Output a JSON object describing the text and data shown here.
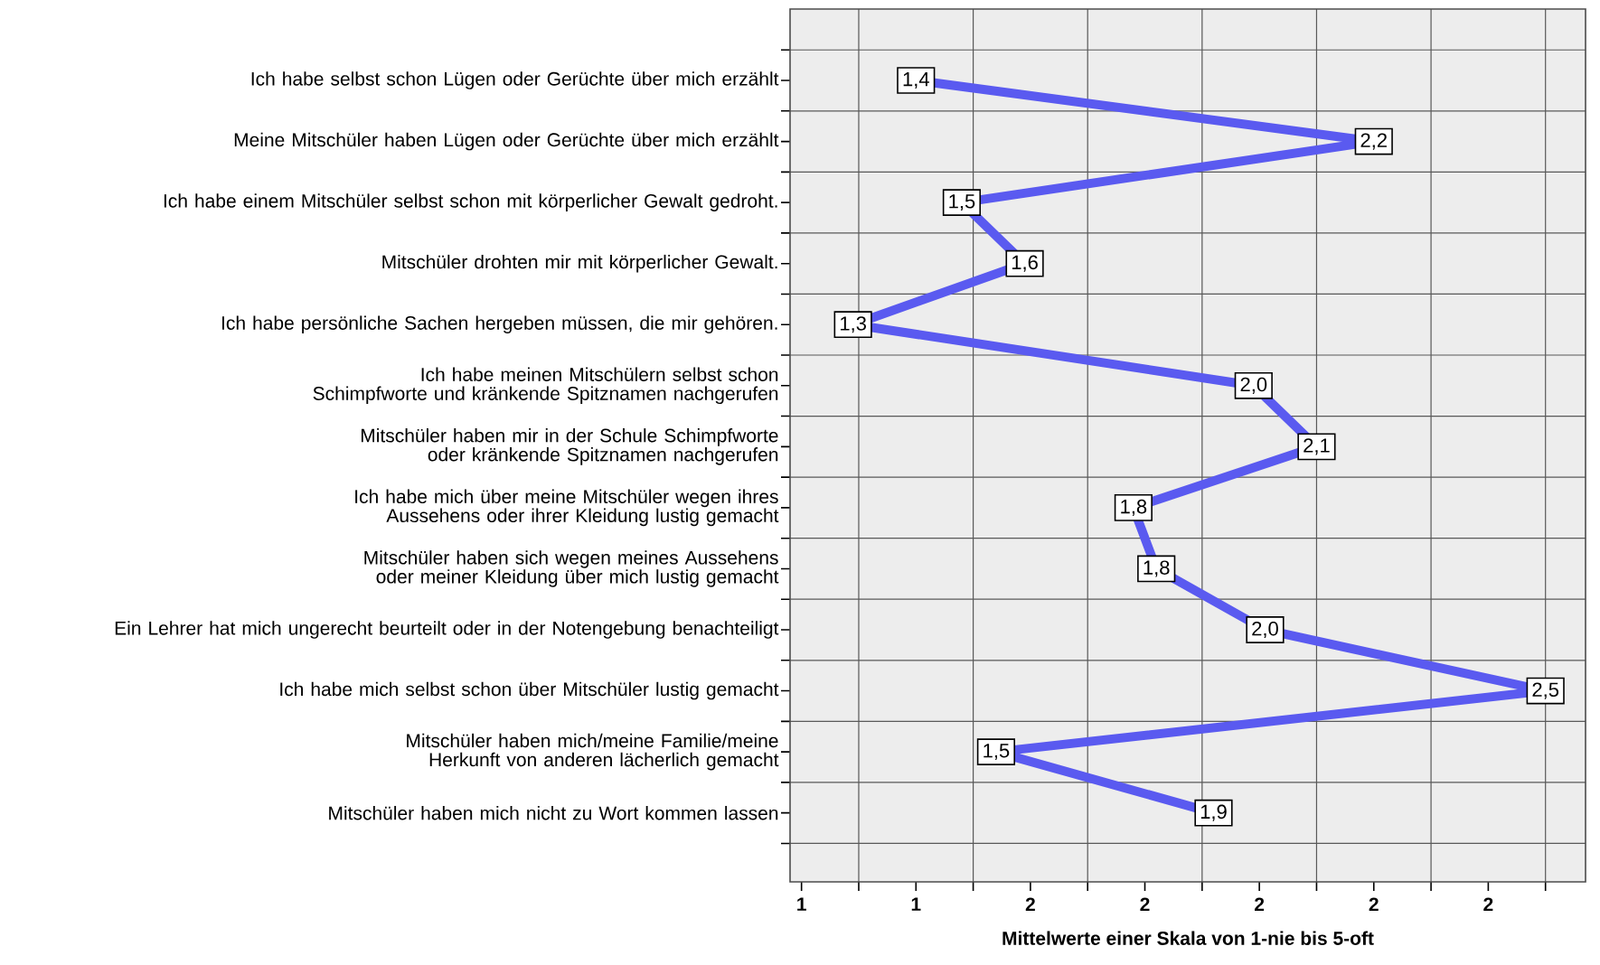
{
  "chart_data": {
    "type": "line",
    "orientation": "horizontal",
    "categories": [
      "Ich habe selbst schon Lügen oder Gerüchte über mich erzählt",
      "Meine Mitschüler haben Lügen oder Gerüchte über mich erzählt",
      "Ich habe einem Mitschüler selbst schon mit körperlicher Gewalt gedroht.",
      "Mitschüler drohten mir mit körperlicher Gewalt.",
      "Ich habe persönliche Sachen hergeben müssen, die mir gehören.",
      "Ich habe meinen Mitschülern selbst schon Schimpfworte und kränkende Spitznamen nachgerufen",
      "Mitschüler haben mir in der Schule Schimpfworte oder kränkende Spitznamen nachgerufen",
      "Ich habe mich über meine Mitschüler wegen ihres Aussehens oder ihrer Kleidung lustig gemacht",
      "Mitschüler haben sich wegen meines Aussehens oder meiner Kleidung über mich lustig gemacht",
      "Ein Lehrer hat mich ungerecht beurteilt oder in der Notengebung benachteiligt",
      "Ich habe mich selbst schon über Mitschüler lustig gemacht",
      "Mitschüler haben mich/meine Familie/meine Herkunft von anderen lächerlich gemacht",
      "Mitschüler haben mich nicht zu Wort kommen lassen"
    ],
    "values": [
      1.4,
      2.2,
      1.48,
      1.59,
      1.29,
      1.99,
      2.1,
      1.78,
      1.82,
      2.01,
      2.5,
      1.54,
      1.92
    ],
    "value_labels": [
      "1,4",
      "2,2",
      "1,5",
      "1,6",
      "1,3",
      "2,0",
      "2,1",
      "1,8",
      "1,8",
      "2,0",
      "2,5",
      "1,5",
      "1,9"
    ],
    "color": "#5a5af0",
    "xlabel": "Mittelwerte einer Skala von 1-nie bis 5-oft",
    "xlim": [
      1.18,
      2.57
    ],
    "xticks": [
      {
        "value": 1.2,
        "label": "1"
      },
      {
        "value": 1.4,
        "label": "1"
      },
      {
        "value": 1.6,
        "label": "2"
      },
      {
        "value": 1.8,
        "label": "2"
      },
      {
        "value": 2.0,
        "label": "2"
      },
      {
        "value": 2.2,
        "label": "2"
      },
      {
        "value": 2.4,
        "label": "2"
      }
    ],
    "grid": true,
    "marker": "square",
    "line_style": "solid"
  }
}
